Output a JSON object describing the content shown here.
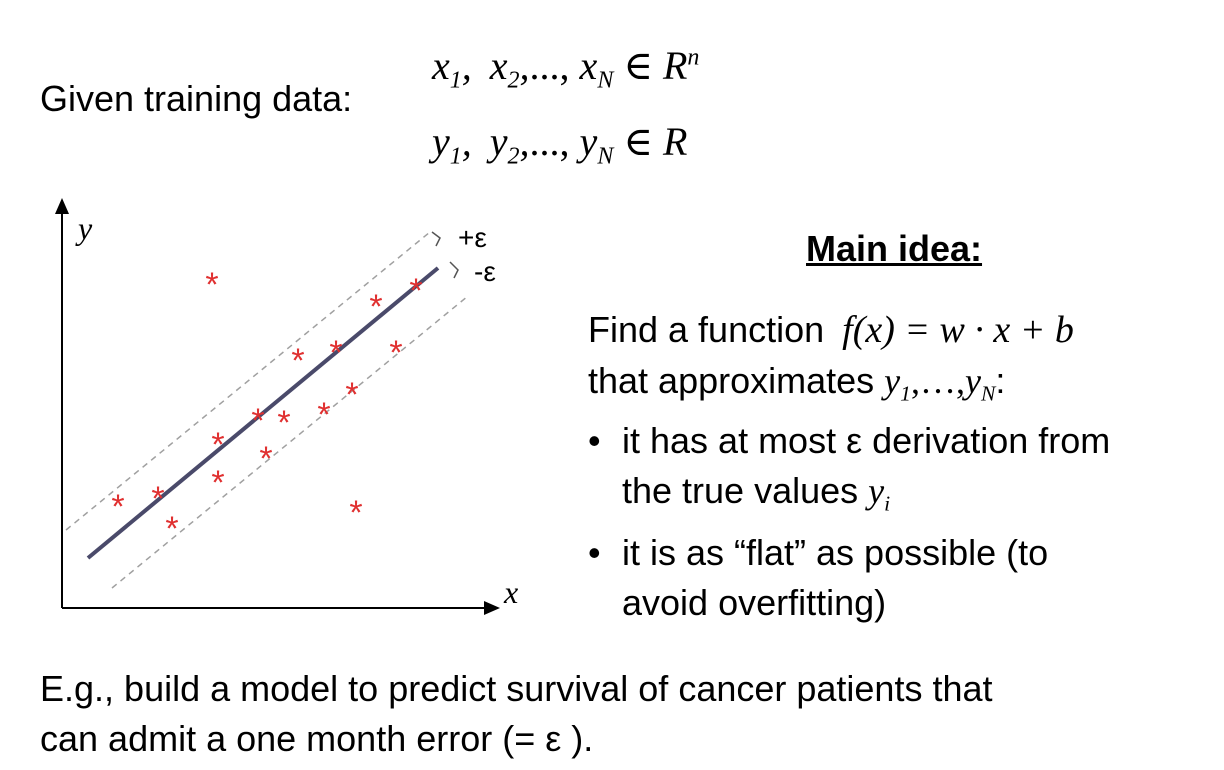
{
  "given": {
    "label": "Given training data:",
    "x_vectors": {
      "x1": "x",
      "sub1": "1",
      "x2": "x",
      "sub2": "2",
      "dots": "...,",
      "xN": "x",
      "subN": "N",
      "in": "∈",
      "R": "R",
      "sup": "n"
    },
    "y_values": {
      "y1": "y",
      "sub1": "1",
      "y2": "y",
      "sub2": "2",
      "dots": "...,",
      "yN": "y",
      "subN": "N",
      "in": "∈",
      "R": "R"
    }
  },
  "diagram": {
    "y_axis_label": "y",
    "x_axis_label": "x",
    "plus_eps": "+ε",
    "minus_eps": "-ε",
    "point_symbol": "*",
    "colors": {
      "points": "#e03030",
      "line": "#4a4a6a",
      "band": "#a0a0a0",
      "axis": "#000000"
    }
  },
  "main_idea": {
    "title": "Main idea:",
    "find_prefix": "Find a function",
    "formula": "f(x) = w · x + b",
    "approx_prefix": "that approximates",
    "approx_y1": "y",
    "approx_sub1": "1",
    "approx_dots": ",…,",
    "approx_yN": "y",
    "approx_subN": "N",
    "approx_colon": ":",
    "bullets": [
      {
        "line1": "it has at most ε derivation from",
        "line2_prefix": "the true values",
        "line2_var": "y",
        "line2_sub": "i"
      },
      {
        "line1": "it is as “flat” as possible (to",
        "line2": "avoid overfitting)"
      }
    ],
    "bullet_symbol": "•"
  },
  "example": {
    "line1": "E.g., build a model to predict survival of cancer patients that",
    "line2": "can admit a one month error (= ε )."
  }
}
